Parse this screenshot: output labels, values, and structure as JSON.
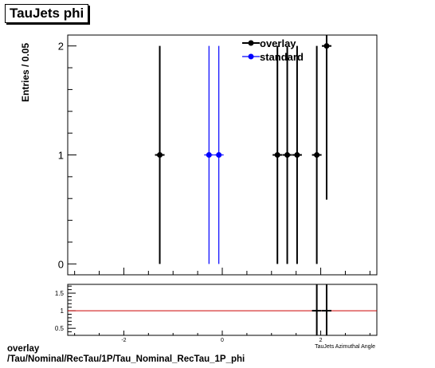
{
  "title": "TauJets phi",
  "footer": {
    "line1": "overlay",
    "line2": "/Tau/Nominal/RecTau/1P/Tau_Nominal_RecTau_1P_phi"
  },
  "colors": {
    "overlay": "#000000",
    "standard": "#0000ff",
    "ratio_line": "#cc0000"
  },
  "chart_data": [
    {
      "type": "scatter",
      "title": "TauJets phi",
      "xlabel": "",
      "ylabel": "Entries / 0.05",
      "xlim": [
        -3.14,
        3.14
      ],
      "ylim": [
        -0.1,
        2.1
      ],
      "yticks": [
        "0",
        "1",
        "2"
      ],
      "legend": "top-right",
      "series": [
        {
          "name": "overlay",
          "color": "#000000",
          "points": [
            {
              "x": -1.27,
              "y": 1,
              "ylo": 0,
              "yhi": 2
            },
            {
              "x": 1.12,
              "y": 1,
              "ylo": 0,
              "yhi": 2
            },
            {
              "x": 1.32,
              "y": 1,
              "ylo": 0,
              "yhi": 2
            },
            {
              "x": 1.52,
              "y": 1,
              "ylo": 0,
              "yhi": 2
            },
            {
              "x": 1.92,
              "y": 1,
              "ylo": 0,
              "yhi": 2
            },
            {
              "x": 2.12,
              "y": 2,
              "ylo": 0.59,
              "yhi": 2.1
            }
          ]
        },
        {
          "name": "standard",
          "color": "#0000ff",
          "points": [
            {
              "x": -0.27,
              "y": 1,
              "ylo": 0,
              "yhi": 2
            },
            {
              "x": -0.07,
              "y": 1,
              "ylo": 0,
              "yhi": 2
            }
          ]
        }
      ]
    },
    {
      "type": "scatter",
      "title": "",
      "xlabel": "TauJets Azimuthal Angle",
      "ylabel": "",
      "xlim": [
        -3.14,
        3.14
      ],
      "ylim": [
        0.3,
        1.75
      ],
      "xticks": [
        "-2",
        "0",
        "2"
      ],
      "yticks": [
        "0.5",
        "1",
        "1.5"
      ],
      "reference_line": 1,
      "series": [
        {
          "name": "ratio",
          "color": "#000000",
          "points": [
            {
              "x": 1.92,
              "y": 1,
              "ylo": 0.3,
              "yhi": 1.75
            },
            {
              "x": 2.12,
              "y": 1,
              "ylo": 0.3,
              "yhi": 1.75
            }
          ]
        }
      ]
    }
  ]
}
